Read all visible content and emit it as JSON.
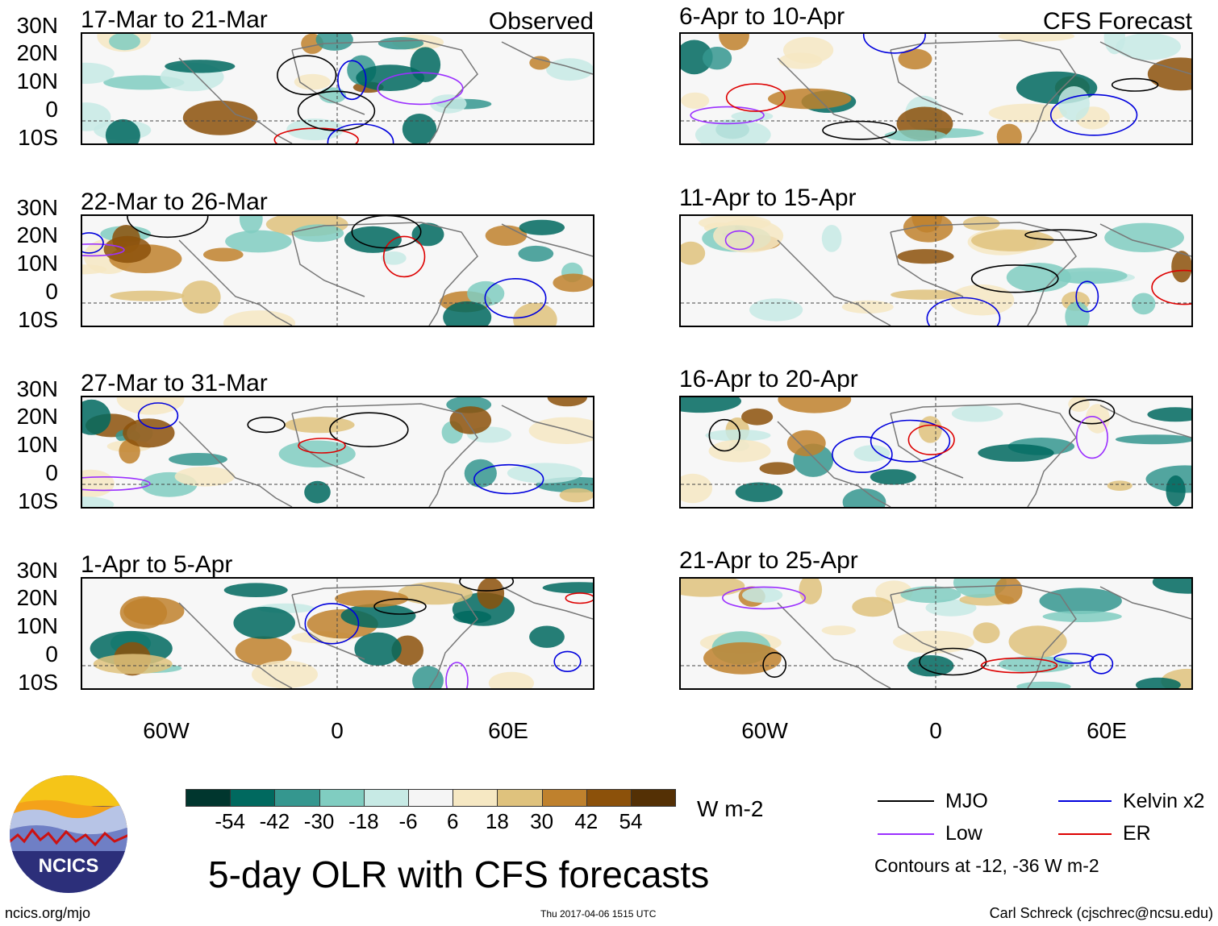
{
  "observed_label": "Observed",
  "forecast_label": "CFS Forecast",
  "lat_labels": [
    "30N",
    "20N",
    "10N",
    "0",
    "10S"
  ],
  "lon_labels": [
    "60W",
    "0",
    "60E"
  ],
  "panels_left": [
    {
      "title": "17-Mar to 21-Mar"
    },
    {
      "title": "22-Mar to 26-Mar"
    },
    {
      "title": "27-Mar to 31-Mar"
    },
    {
      "title": "1-Apr to 5-Apr"
    }
  ],
  "panels_right": [
    {
      "title": "6-Apr to 10-Apr"
    },
    {
      "title": "11-Apr to 15-Apr"
    },
    {
      "title": "16-Apr to 20-Apr"
    },
    {
      "title": "21-Apr to 25-Apr"
    }
  ],
  "colorbar": {
    "ticks": [
      "-54",
      "-42",
      "-30",
      "-18",
      "-6",
      "6",
      "18",
      "30",
      "42",
      "54"
    ],
    "colors": [
      "#00362e",
      "#00695f",
      "#35978f",
      "#80cdc1",
      "#c7eae5",
      "#f5f5f5",
      "#f6e8c3",
      "#dfc27d",
      "#bf812d",
      "#8c510a",
      "#543005"
    ],
    "units": "W m-2"
  },
  "legend": {
    "items": [
      {
        "label": "MJO",
        "color": "#000000"
      },
      {
        "label": "Kelvin x2",
        "color": "#0000dd"
      },
      {
        "label": "Low",
        "color": "#9b30ff"
      },
      {
        "label": "ER",
        "color": "#dd0000"
      }
    ],
    "contours_note": "Contours at -12, -36 W m-2"
  },
  "logo": {
    "text": "NCICS"
  },
  "main_title": "5-day OLR with CFS forecasts",
  "footer": {
    "url": "ncics.org/mjo",
    "timestamp": "Thu 2017-04-06 1515 UTC",
    "credit": "Carl Schreck (cjschrec@ncsu.edu)"
  }
}
